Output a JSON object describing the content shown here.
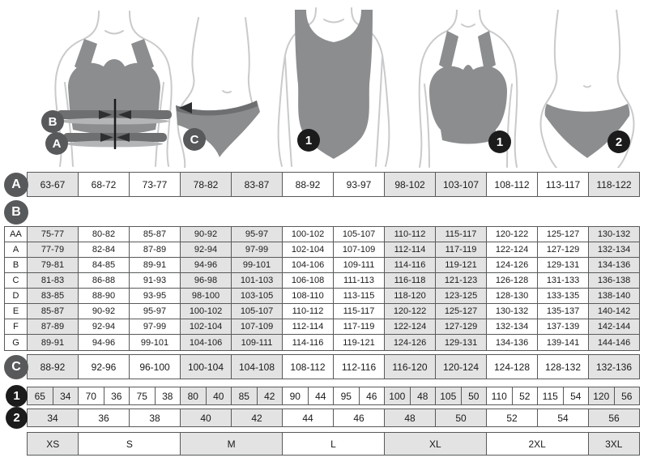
{
  "colors": {
    "cell_shaded": "#e3e3e3",
    "cell_white": "#ffffff",
    "border": "#58595b",
    "badge_gray": "#58595b",
    "badge_black": "#1b1b1b",
    "garment": "#8c8d8f",
    "measure_band": "#6e6f71",
    "body_outline": "#c9cacb"
  },
  "figure_badges": {
    "bra_b": "B",
    "bra_a": "A",
    "panty_c": "C",
    "bodysuit_1": "1",
    "bra_1": "1",
    "panty_2": "2"
  },
  "row_a": {
    "label": "A",
    "cells": [
      "63-67",
      "68-72",
      "73-77",
      "78-82",
      "83-87",
      "88-92",
      "93-97",
      "98-102",
      "103-107",
      "108-112",
      "113-117",
      "118-122"
    ]
  },
  "table_b": {
    "label": "B",
    "rows": [
      {
        "label": "AA",
        "cells": [
          "75-77",
          "80-82",
          "85-87",
          "90-92",
          "95-97",
          "100-102",
          "105-107",
          "110-112",
          "115-117",
          "120-122",
          "125-127",
          "130-132"
        ]
      },
      {
        "label": "A",
        "cells": [
          "77-79",
          "82-84",
          "87-89",
          "92-94",
          "97-99",
          "102-104",
          "107-109",
          "112-114",
          "117-119",
          "122-124",
          "127-129",
          "132-134"
        ]
      },
      {
        "label": "B",
        "cells": [
          "79-81",
          "84-85",
          "89-91",
          "94-96",
          "99-101",
          "104-106",
          "109-111",
          "114-116",
          "119-121",
          "124-126",
          "129-131",
          "134-136"
        ]
      },
      {
        "label": "C",
        "cells": [
          "81-83",
          "86-88",
          "91-93",
          "96-98",
          "101-103",
          "106-108",
          "111-113",
          "116-118",
          "121-123",
          "126-128",
          "131-133",
          "136-138"
        ]
      },
      {
        "label": "D",
        "cells": [
          "83-85",
          "88-90",
          "93-95",
          "98-100",
          "103-105",
          "108-110",
          "113-115",
          "118-120",
          "123-125",
          "128-130",
          "133-135",
          "138-140"
        ]
      },
      {
        "label": "E",
        "cells": [
          "85-87",
          "90-92",
          "95-97",
          "100-102",
          "105-107",
          "110-112",
          "115-117",
          "120-122",
          "125-127",
          "130-132",
          "135-137",
          "140-142"
        ]
      },
      {
        "label": "F",
        "cells": [
          "87-89",
          "92-94",
          "97-99",
          "102-104",
          "107-109",
          "112-114",
          "117-119",
          "122-124",
          "127-129",
          "132-134",
          "137-139",
          "142-144"
        ]
      },
      {
        "label": "G",
        "cells": [
          "89-91",
          "94-96",
          "99-101",
          "104-106",
          "109-111",
          "114-116",
          "119-121",
          "124-126",
          "129-131",
          "134-136",
          "139-141",
          "144-146"
        ]
      }
    ]
  },
  "row_c": {
    "label": "C",
    "cells": [
      "88-92",
      "92-96",
      "96-100",
      "100-104",
      "104-108",
      "108-112",
      "112-116",
      "116-120",
      "120-124",
      "124-128",
      "128-132",
      "132-136"
    ]
  },
  "row_1": {
    "label": "1",
    "pairs": [
      [
        "65",
        "34"
      ],
      [
        "70",
        "36"
      ],
      [
        "75",
        "38"
      ],
      [
        "80",
        "40"
      ],
      [
        "85",
        "42"
      ],
      [
        "90",
        "44"
      ],
      [
        "95",
        "46"
      ],
      [
        "100",
        "48"
      ],
      [
        "105",
        "50"
      ],
      [
        "110",
        "52"
      ],
      [
        "115",
        "54"
      ],
      [
        "120",
        "56"
      ]
    ]
  },
  "row_2": {
    "label": "2",
    "cells": [
      "34",
      "36",
      "38",
      "40",
      "42",
      "44",
      "46",
      "48",
      "50",
      "52",
      "54",
      "56"
    ]
  },
  "sizes": {
    "cells": [
      {
        "label": "XS",
        "span": 1
      },
      {
        "label": "S",
        "span": 2
      },
      {
        "label": "M",
        "span": 2
      },
      {
        "label": "L",
        "span": 2
      },
      {
        "label": "XL",
        "span": 2
      },
      {
        "label": "2XL",
        "span": 2
      },
      {
        "label": "3XL",
        "span": 1
      }
    ]
  }
}
